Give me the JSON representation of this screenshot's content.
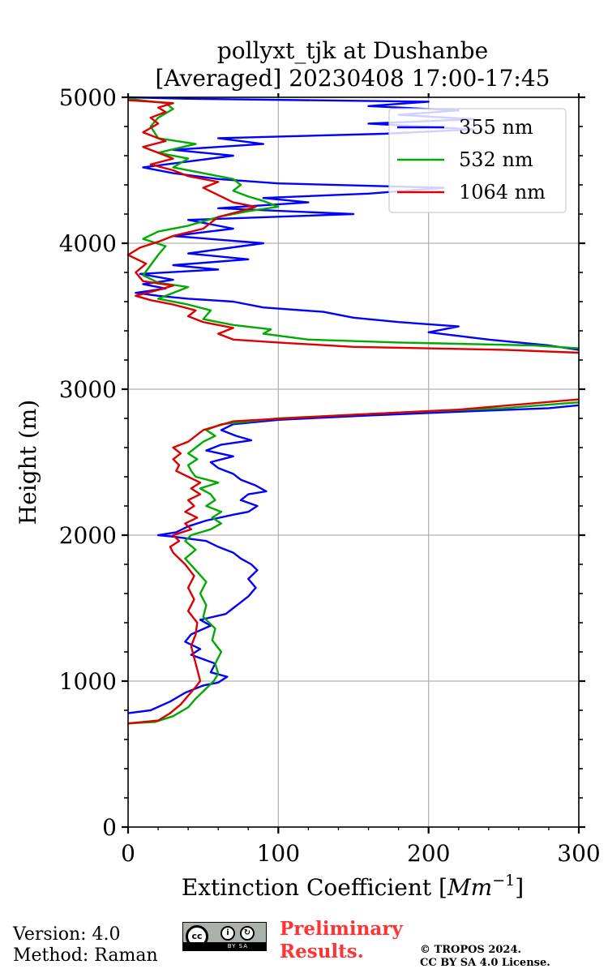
{
  "title_line1": "pollyxt_tjk at Dushanbe",
  "title_line2": "[Averaged] 20230408 17:00-17:45",
  "footer": {
    "version": "Version: 4.0",
    "method": "Method: Raman",
    "preliminary_line1": "Preliminary",
    "preliminary_line2": "Results.",
    "copyright_line1": "© TROPOS 2024.",
    "copyright_line2": "CC BY SA 4.0 License.",
    "cc_badge": {
      "cc": "cc",
      "by": "i",
      "sa": "↻",
      "caption": "BY SA"
    }
  },
  "colors": {
    "s355": "#0000ff",
    "s532": "#00aa00",
    "s1064": "#dd0000",
    "grid": "#b0b0b0"
  },
  "chart_data": {
    "type": "line",
    "orientation": "profile: x = extinction, y = height",
    "xlabel": "Extinction Coefficient [Mm⁻¹]",
    "xlabel_main": "Extinction Coefficient [",
    "xlabel_unit": "Mm",
    "xlabel_exp": "−1",
    "xlabel_close": "]",
    "ylabel": "Height (m)",
    "xlim": [
      0,
      300
    ],
    "ylim": [
      0,
      5000
    ],
    "xticks": [
      0,
      100,
      200,
      300
    ],
    "xtick_labels": [
      "0",
      "100",
      "200",
      "300"
    ],
    "yticks": [
      0,
      1000,
      2000,
      3000,
      4000,
      5000
    ],
    "ytick_labels": [
      "0",
      "1000",
      "2000",
      "3000",
      "4000",
      "5000"
    ],
    "grid": true,
    "legend_position": "top-right",
    "series": [
      {
        "name": "355 nm",
        "color_key": "s355",
        "points": [
          [
            0,
            780
          ],
          [
            15,
            800
          ],
          [
            28,
            860
          ],
          [
            38,
            920
          ],
          [
            50,
            970
          ],
          [
            60,
            990
          ],
          [
            66,
            1030
          ],
          [
            55,
            1060
          ],
          [
            58,
            1120
          ],
          [
            42,
            1180
          ],
          [
            48,
            1220
          ],
          [
            38,
            1270
          ],
          [
            42,
            1320
          ],
          [
            55,
            1380
          ],
          [
            48,
            1420
          ],
          [
            65,
            1460
          ],
          [
            70,
            1500
          ],
          [
            75,
            1540
          ],
          [
            80,
            1580
          ],
          [
            85,
            1640
          ],
          [
            80,
            1700
          ],
          [
            86,
            1760
          ],
          [
            82,
            1800
          ],
          [
            75,
            1840
          ],
          [
            70,
            1880
          ],
          [
            60,
            1920
          ],
          [
            52,
            1960
          ],
          [
            30,
            1990
          ],
          [
            20,
            2000
          ],
          [
            32,
            2020
          ],
          [
            40,
            2060
          ],
          [
            52,
            2100
          ],
          [
            70,
            2140
          ],
          [
            80,
            2160
          ],
          [
            86,
            2200
          ],
          [
            75,
            2240
          ],
          [
            80,
            2280
          ],
          [
            92,
            2300
          ],
          [
            85,
            2340
          ],
          [
            75,
            2380
          ],
          [
            70,
            2420
          ],
          [
            60,
            2460
          ],
          [
            55,
            2500
          ],
          [
            70,
            2540
          ],
          [
            52,
            2580
          ],
          [
            62,
            2620
          ],
          [
            82,
            2650
          ],
          [
            72,
            2680
          ],
          [
            62,
            2720
          ],
          [
            70,
            2760
          ],
          [
            100,
            2790
          ],
          [
            160,
            2820
          ],
          [
            230,
            2850
          ],
          [
            280,
            2870
          ],
          [
            300,
            2890
          ]
        ],
        "points_upper": [
          [
            300,
            3270
          ],
          [
            280,
            3300
          ],
          [
            240,
            3340
          ],
          [
            200,
            3390
          ],
          [
            220,
            3430
          ],
          [
            180,
            3460
          ],
          [
            150,
            3490
          ],
          [
            130,
            3530
          ],
          [
            90,
            3560
          ],
          [
            70,
            3600
          ],
          [
            40,
            3620
          ],
          [
            20,
            3640
          ],
          [
            5,
            3660
          ],
          [
            25,
            3690
          ],
          [
            10,
            3720
          ],
          [
            30,
            3750
          ],
          [
            8,
            3790
          ],
          [
            60,
            3820
          ],
          [
            30,
            3850
          ],
          [
            80,
            3890
          ],
          [
            40,
            3930
          ],
          [
            90,
            4000
          ],
          [
            30,
            4050
          ],
          [
            70,
            4100
          ],
          [
            40,
            4160
          ],
          [
            150,
            4200
          ],
          [
            60,
            4240
          ],
          [
            120,
            4280
          ],
          [
            90,
            4310
          ],
          [
            160,
            4340
          ],
          [
            210,
            4380
          ],
          [
            100,
            4410
          ],
          [
            60,
            4440
          ],
          [
            30,
            4480
          ],
          [
            10,
            4520
          ],
          [
            40,
            4560
          ],
          [
            70,
            4600
          ],
          [
            30,
            4640
          ],
          [
            90,
            4680
          ],
          [
            60,
            4720
          ],
          [
            170,
            4750
          ],
          [
            230,
            4780
          ],
          [
            160,
            4820
          ],
          [
            230,
            4850
          ],
          [
            180,
            4880
          ],
          [
            220,
            4910
          ],
          [
            160,
            4940
          ],
          [
            200,
            4970
          ],
          [
            40,
            4990
          ],
          [
            0,
            5000
          ]
        ]
      },
      {
        "name": "532 nm",
        "color_key": "s532",
        "points": [
          [
            0,
            710
          ],
          [
            18,
            720
          ],
          [
            30,
            760
          ],
          [
            40,
            820
          ],
          [
            45,
            880
          ],
          [
            52,
            950
          ],
          [
            57,
            1000
          ],
          [
            60,
            1050
          ],
          [
            58,
            1120
          ],
          [
            62,
            1200
          ],
          [
            56,
            1280
          ],
          [
            58,
            1360
          ],
          [
            50,
            1440
          ],
          [
            52,
            1520
          ],
          [
            48,
            1600
          ],
          [
            52,
            1680
          ],
          [
            45,
            1760
          ],
          [
            38,
            1840
          ],
          [
            45,
            1900
          ],
          [
            38,
            1960
          ],
          [
            42,
            2000
          ],
          [
            55,
            2040
          ],
          [
            62,
            2080
          ],
          [
            56,
            2120
          ],
          [
            62,
            2160
          ],
          [
            52,
            2200
          ],
          [
            58,
            2240
          ],
          [
            55,
            2280
          ],
          [
            48,
            2320
          ],
          [
            60,
            2360
          ],
          [
            45,
            2400
          ],
          [
            42,
            2440
          ],
          [
            40,
            2480
          ],
          [
            46,
            2520
          ],
          [
            40,
            2560
          ],
          [
            45,
            2600
          ],
          [
            50,
            2640
          ],
          [
            58,
            2680
          ],
          [
            52,
            2720
          ],
          [
            62,
            2760
          ],
          [
            100,
            2800
          ],
          [
            180,
            2840
          ],
          [
            250,
            2870
          ],
          [
            300,
            2910
          ]
        ],
        "points_upper": [
          [
            300,
            3280
          ],
          [
            270,
            3300
          ],
          [
            180,
            3320
          ],
          [
            120,
            3340
          ],
          [
            90,
            3380
          ],
          [
            95,
            3410
          ],
          [
            70,
            3440
          ],
          [
            50,
            3480
          ],
          [
            55,
            3540
          ],
          [
            40,
            3580
          ],
          [
            20,
            3620
          ],
          [
            30,
            3660
          ],
          [
            40,
            3700
          ],
          [
            20,
            3730
          ],
          [
            10,
            3780
          ],
          [
            15,
            3850
          ],
          [
            20,
            3920
          ],
          [
            25,
            3980
          ],
          [
            10,
            4030
          ],
          [
            20,
            4080
          ],
          [
            40,
            4120
          ],
          [
            60,
            4180
          ],
          [
            80,
            4220
          ],
          [
            100,
            4250
          ],
          [
            90,
            4290
          ],
          [
            80,
            4320
          ],
          [
            70,
            4360
          ],
          [
            75,
            4400
          ],
          [
            70,
            4440
          ],
          [
            50,
            4480
          ],
          [
            30,
            4520
          ],
          [
            40,
            4580
          ],
          [
            20,
            4620
          ],
          [
            45,
            4680
          ],
          [
            20,
            4720
          ],
          [
            15,
            4800
          ],
          [
            20,
            4860
          ],
          [
            30,
            4920
          ],
          [
            25,
            4960
          ],
          [
            0,
            4990
          ]
        ]
      },
      {
        "name": "1064 nm",
        "color_key": "s1064",
        "points": [
          [
            0,
            710
          ],
          [
            20,
            730
          ],
          [
            28,
            780
          ],
          [
            35,
            840
          ],
          [
            40,
            900
          ],
          [
            45,
            960
          ],
          [
            48,
            1000
          ],
          [
            46,
            1080
          ],
          [
            44,
            1160
          ],
          [
            42,
            1240
          ],
          [
            45,
            1320
          ],
          [
            46,
            1400
          ],
          [
            40,
            1480
          ],
          [
            44,
            1560
          ],
          [
            40,
            1640
          ],
          [
            44,
            1720
          ],
          [
            38,
            1800
          ],
          [
            30,
            1880
          ],
          [
            28,
            1920
          ],
          [
            34,
            1960
          ],
          [
            30,
            2000
          ],
          [
            42,
            2040
          ],
          [
            38,
            2080
          ],
          [
            46,
            2120
          ],
          [
            38,
            2160
          ],
          [
            44,
            2200
          ],
          [
            40,
            2240
          ],
          [
            48,
            2280
          ],
          [
            42,
            2320
          ],
          [
            48,
            2360
          ],
          [
            40,
            2400
          ],
          [
            32,
            2440
          ],
          [
            34,
            2480
          ],
          [
            30,
            2520
          ],
          [
            35,
            2560
          ],
          [
            30,
            2600
          ],
          [
            40,
            2640
          ],
          [
            45,
            2680
          ],
          [
            50,
            2720
          ],
          [
            70,
            2780
          ],
          [
            140,
            2820
          ],
          [
            220,
            2860
          ],
          [
            300,
            2930
          ]
        ],
        "points_upper": [
          [
            300,
            3250
          ],
          [
            250,
            3270
          ],
          [
            150,
            3290
          ],
          [
            100,
            3320
          ],
          [
            70,
            3340
          ],
          [
            60,
            3380
          ],
          [
            70,
            3420
          ],
          [
            50,
            3460
          ],
          [
            40,
            3500
          ],
          [
            45,
            3540
          ],
          [
            30,
            3580
          ],
          [
            15,
            3610
          ],
          [
            5,
            3640
          ],
          [
            20,
            3680
          ],
          [
            30,
            3710
          ],
          [
            10,
            3740
          ],
          [
            5,
            3800
          ],
          [
            12,
            3860
          ],
          [
            0,
            3920
          ],
          [
            8,
            3970
          ],
          [
            20,
            4010
          ],
          [
            30,
            4050
          ],
          [
            50,
            4100
          ],
          [
            55,
            4140
          ],
          [
            60,
            4180
          ],
          [
            75,
            4220
          ],
          [
            85,
            4250
          ],
          [
            70,
            4280
          ],
          [
            60,
            4330
          ],
          [
            50,
            4380
          ],
          [
            60,
            4420
          ],
          [
            40,
            4460
          ],
          [
            30,
            4500
          ],
          [
            15,
            4540
          ],
          [
            30,
            4580
          ],
          [
            20,
            4620
          ],
          [
            10,
            4660
          ],
          [
            25,
            4700
          ],
          [
            10,
            4760
          ],
          [
            20,
            4820
          ],
          [
            15,
            4860
          ],
          [
            25,
            4900
          ],
          [
            20,
            4930
          ],
          [
            30,
            4960
          ],
          [
            0,
            4980
          ]
        ]
      }
    ]
  }
}
